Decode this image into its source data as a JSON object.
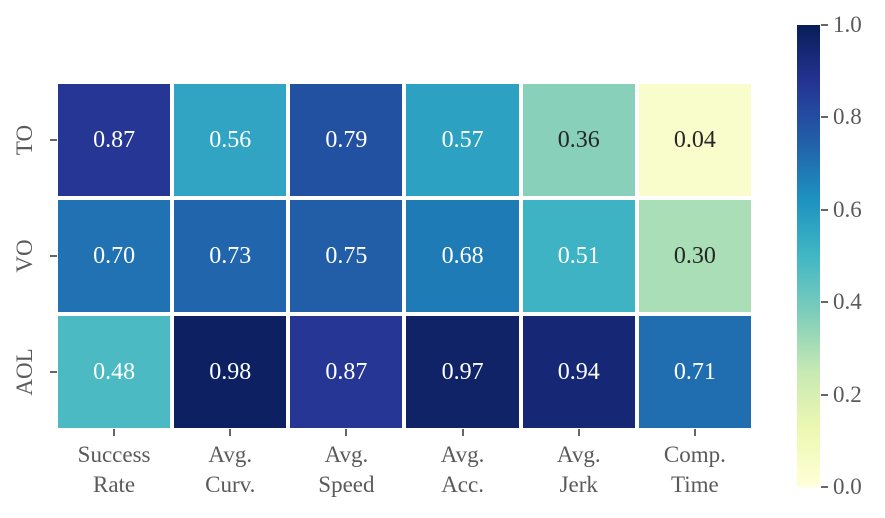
{
  "chart_data": {
    "type": "heatmap",
    "title": "",
    "rows": [
      "TO",
      "VO",
      "AOL"
    ],
    "columns": [
      "Success\nRate",
      "Avg.\nCurv.",
      "Avg.\nSpeed",
      "Avg.\nAcc.",
      "Avg.\nJerk",
      "Comp.\nTime"
    ],
    "values": [
      [
        0.87,
        0.56,
        0.79,
        0.57,
        0.36,
        0.04
      ],
      [
        0.7,
        0.73,
        0.75,
        0.68,
        0.51,
        0.3
      ],
      [
        0.48,
        0.98,
        0.87,
        0.97,
        0.94,
        0.71
      ]
    ],
    "annotations": [
      [
        "0.87",
        "0.56",
        "0.79",
        "0.57",
        "0.36",
        "0.04"
      ],
      [
        "0.70",
        "0.73",
        "0.75",
        "0.68",
        "0.51",
        "0.30"
      ],
      [
        "0.48",
        "0.98",
        "0.87",
        "0.97",
        "0.94",
        "0.71"
      ]
    ],
    "vmin": 0,
    "vmax": 1,
    "grid": false,
    "legend_position": "colorbar-right",
    "colormap": {
      "name": "YlGnBu",
      "anchors": [
        "#ffffd9",
        "#edf8b1",
        "#c7e9b4",
        "#7fcdbb",
        "#41b6c4",
        "#1d91c0",
        "#225ea8",
        "#253494",
        "#081d58"
      ]
    },
    "colorbar": {
      "tick_labels": [
        "1.0",
        "0.8",
        "0.6",
        "0.4",
        "0.2",
        "0.0"
      ],
      "min": 0.0,
      "max": 1.0
    },
    "colors": {
      "annotation_light": "#ffffff",
      "annotation_dark": "#262626",
      "axis_text": "#5a5a5a",
      "tick": "#666666",
      "background": "#ffffff",
      "cell_gap": "#ffffff"
    }
  }
}
